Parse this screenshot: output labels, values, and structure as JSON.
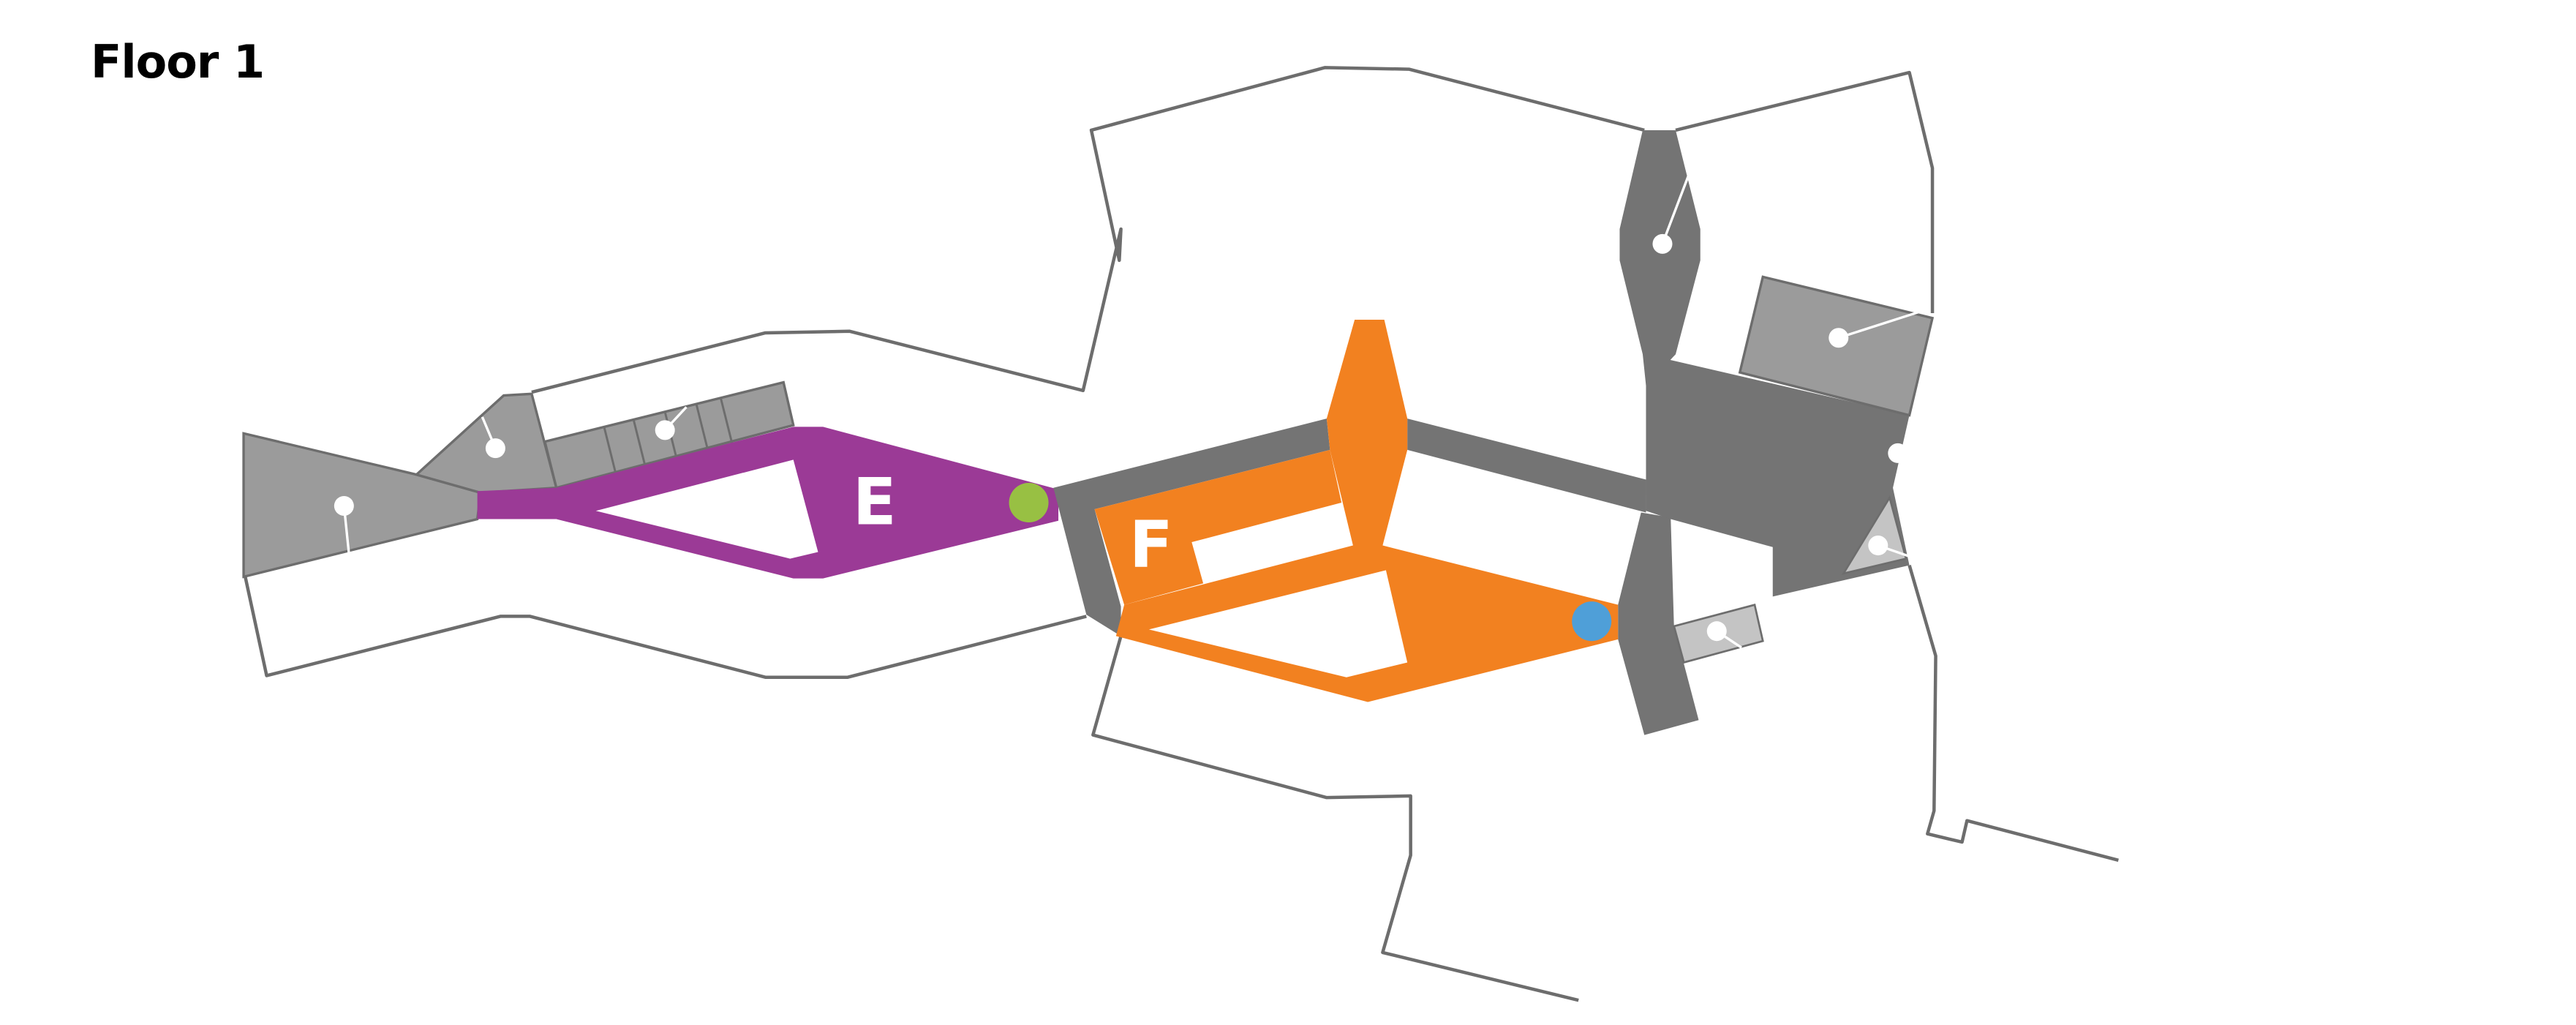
{
  "floor": {
    "title": "Floor 1"
  },
  "zones": [
    {
      "id": "E",
      "label": "E",
      "color": "#9b3a96"
    },
    {
      "id": "F",
      "label": "F",
      "color": "#f28120"
    }
  ],
  "colors": {
    "outline": "#6d6d6d",
    "corridor_dark": "#747474",
    "room_gray": "#9b9b9b",
    "room_light": "#c4c4c4",
    "marker_white": "#ffffff",
    "marker_green": "#98c043",
    "marker_blue": "#4f9fd8"
  },
  "markers": [
    {
      "name": "location-marker-green",
      "color_key": "marker_green"
    },
    {
      "name": "location-marker-blue",
      "color_key": "marker_blue"
    }
  ]
}
